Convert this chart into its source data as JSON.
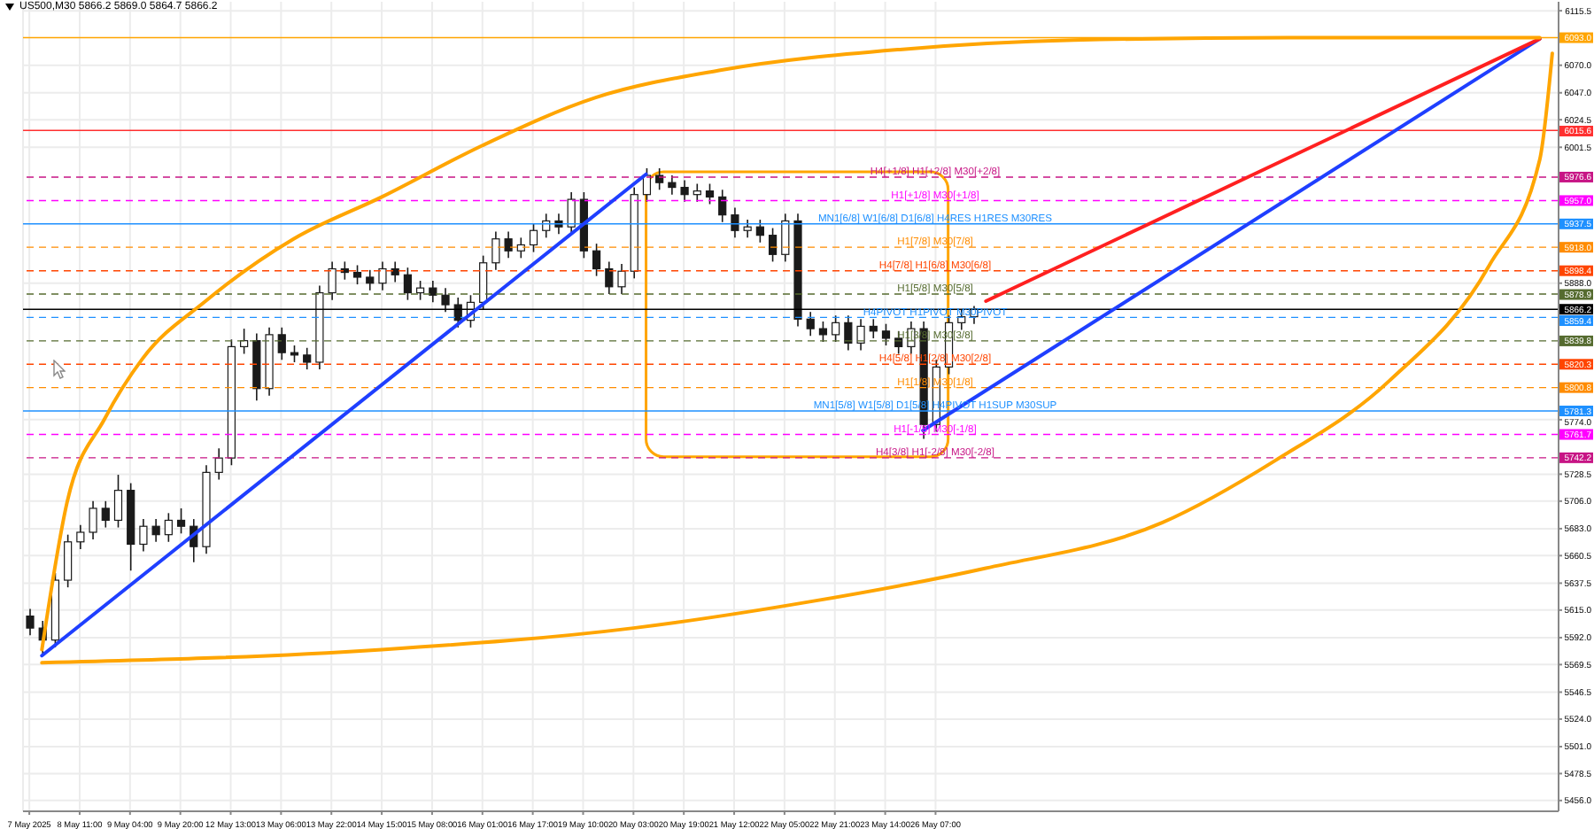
{
  "chart_data": {
    "type": "candlestick",
    "title": "US500,M30  5866.2 5869.0 5864.7 5866.2",
    "color": "#1a1a1a",
    "categories": [
      "7 May 2025",
      null,
      null,
      null,
      "8 May 11:00",
      null,
      null,
      null,
      "9 May 04:00",
      null,
      null,
      null,
      "9 May 20:00",
      null,
      null,
      null,
      "12 May 13:00",
      null,
      null,
      null,
      "13 May 06:00",
      null,
      null,
      null,
      "13 May 22:00",
      null,
      null,
      null,
      "14 May 15:00",
      null,
      null,
      null,
      "15 May 08:00",
      null,
      null,
      null,
      "16 May 01:00",
      null,
      null,
      null,
      "16 May 17:00",
      null,
      null,
      null,
      "19 May 10:00",
      null,
      null,
      null,
      "20 May 03:00",
      null,
      null,
      null,
      "20 May 19:00",
      null,
      null,
      null,
      "21 May 12:00",
      null,
      null,
      null,
      "22 May 05:00",
      null,
      null,
      null,
      "22 May 21:00",
      null,
      null,
      null,
      "23 May 14:00",
      null,
      null,
      null,
      "26 May 07:00",
      null,
      null,
      null,
      null,
      null,
      null,
      null,
      null,
      null,
      null,
      null,
      null,
      null,
      null,
      null,
      null,
      null,
      null,
      null,
      null,
      null,
      null,
      null,
      null,
      null,
      null,
      null,
      null,
      null,
      null,
      null,
      null,
      null,
      null,
      null,
      null,
      null,
      null,
      null,
      null,
      null,
      null,
      null,
      null,
      null,
      null,
      null,
      null,
      null
    ],
    "ohlc": [
      [
        5610,
        5616,
        5594,
        5600
      ],
      [
        5600,
        5606,
        5578,
        5590
      ],
      [
        5590,
        5646,
        5584,
        5640
      ],
      [
        5640,
        5678,
        5634,
        5672
      ],
      [
        5672,
        5686,
        5666,
        5680
      ],
      [
        5680,
        5706,
        5674,
        5700
      ],
      [
        5700,
        5706,
        5684,
        5690
      ],
      [
        5690,
        5728,
        5684,
        5715
      ],
      [
        5715,
        5721,
        5648,
        5670
      ],
      [
        5670,
        5691,
        5664,
        5685
      ],
      [
        5685,
        5691,
        5672,
        5678
      ],
      [
        5678,
        5696,
        5672,
        5690
      ],
      [
        5690,
        5700,
        5679,
        5685
      ],
      [
        5685,
        5691,
        5655,
        5668
      ],
      [
        5668,
        5736,
        5662,
        5730
      ],
      [
        5730,
        5750,
        5724,
        5742
      ],
      [
        5742,
        5841,
        5736,
        5835
      ],
      [
        5835,
        5850,
        5829,
        5840
      ],
      [
        5840,
        5846,
        5790,
        5800
      ],
      [
        5800,
        5851,
        5794,
        5845
      ],
      [
        5845,
        5851,
        5824,
        5830
      ],
      [
        5830,
        5836,
        5822,
        5828
      ],
      [
        5828,
        5834,
        5816,
        5822
      ],
      [
        5822,
        5886,
        5816,
        5880
      ],
      [
        5880,
        5906,
        5874,
        5900
      ],
      [
        5900,
        5906,
        5891,
        5897
      ],
      [
        5897,
        5903,
        5887,
        5893
      ],
      [
        5893,
        5899,
        5882,
        5888
      ],
      [
        5888,
        5906,
        5882,
        5900
      ],
      [
        5900,
        5906,
        5889,
        5895
      ],
      [
        5895,
        5901,
        5874,
        5880
      ],
      [
        5880,
        5890,
        5874,
        5884
      ],
      [
        5884,
        5890,
        5872,
        5878
      ],
      [
        5878,
        5884,
        5864,
        5870
      ],
      [
        5870,
        5876,
        5851,
        5857
      ],
      [
        5857,
        5878,
        5851,
        5872
      ],
      [
        5872,
        5911,
        5866,
        5905
      ],
      [
        5905,
        5931,
        5899,
        5925
      ],
      [
        5925,
        5931,
        5909,
        5915
      ],
      [
        5915,
        5926,
        5909,
        5920
      ],
      [
        5920,
        5938,
        5914,
        5932
      ],
      [
        5932,
        5946,
        5926,
        5940
      ],
      [
        5940,
        5946,
        5929,
        5935
      ],
      [
        5935,
        5964,
        5929,
        5958
      ],
      [
        5958,
        5964,
        5909,
        5915
      ],
      [
        5915,
        5921,
        5894,
        5900
      ],
      [
        5900,
        5906,
        5879,
        5885
      ],
      [
        5885,
        5904,
        5879,
        5898
      ],
      [
        5898,
        5968,
        5892,
        5962
      ],
      [
        5962,
        5984,
        5956,
        5978
      ],
      [
        5978,
        5984,
        5966,
        5972
      ],
      [
        5972,
        5978,
        5962,
        5968
      ],
      [
        5968,
        5974,
        5956,
        5962
      ],
      [
        5962,
        5971,
        5956,
        5965
      ],
      [
        5965,
        5971,
        5954,
        5960
      ],
      [
        5960,
        5966,
        5939,
        5945
      ],
      [
        5945,
        5951,
        5926,
        5932
      ],
      [
        5932,
        5941,
        5926,
        5935
      ],
      [
        5935,
        5941,
        5922,
        5928
      ],
      [
        5928,
        5934,
        5906,
        5912
      ],
      [
        5912,
        5946,
        5906,
        5940
      ],
      [
        5940,
        5946,
        5852,
        5858
      ],
      [
        5858,
        5864,
        5844,
        5850
      ],
      [
        5850,
        5856,
        5839,
        5845
      ],
      [
        5845,
        5861,
        5839,
        5855
      ],
      [
        5855,
        5861,
        5832,
        5838
      ],
      [
        5838,
        5858,
        5832,
        5852
      ],
      [
        5852,
        5858,
        5842,
        5848
      ],
      [
        5848,
        5854,
        5836,
        5842
      ],
      [
        5842,
        5848,
        5829,
        5835
      ],
      [
        5835,
        5856,
        5829,
        5850
      ],
      [
        5850,
        5856,
        5758,
        5770
      ],
      [
        5770,
        5824,
        5764,
        5818
      ],
      [
        5818,
        5861,
        5812,
        5855
      ],
      [
        5855,
        5866,
        5849,
        5860
      ],
      [
        5860,
        5869,
        5854,
        5866.2
      ],
      null,
      null,
      null,
      null,
      null,
      null,
      null,
      null,
      null,
      null,
      null,
      null,
      null,
      null,
      null,
      null,
      null,
      null,
      null,
      null,
      null,
      null,
      null,
      null,
      null,
      null,
      null,
      null,
      null,
      null,
      null,
      null,
      null,
      null,
      null,
      null,
      null,
      null,
      null,
      null,
      null,
      null,
      null,
      null,
      null,
      null
    ],
    "series": [
      {
        "type": "line",
        "color": "#1f3fff",
        "values": [
          null,
          5577,
          null,
          null,
          null,
          null,
          null,
          null,
          null,
          null,
          null,
          null,
          null,
          null,
          null,
          null,
          null,
          null,
          null,
          null,
          null,
          null,
          null,
          null,
          null,
          null,
          null,
          null,
          null,
          null,
          null,
          null,
          null,
          null,
          null,
          null,
          null,
          null,
          null,
          null,
          null,
          null,
          null,
          null,
          null,
          null,
          null,
          null,
          null,
          5979,
          null,
          null,
          null,
          null,
          null,
          null,
          null,
          null,
          null,
          null,
          null,
          null,
          null,
          null,
          null,
          null,
          null,
          null,
          null,
          null,
          null,
          null,
          null,
          null,
          null,
          null,
          null,
          null,
          null,
          null,
          null,
          null,
          null,
          null,
          null,
          null,
          null,
          null,
          null,
          null,
          null,
          null,
          null,
          null,
          null,
          null,
          null,
          null,
          null,
          null,
          null,
          null,
          null,
          null,
          null,
          null,
          null,
          null,
          null,
          null,
          null,
          null,
          null,
          null,
          null,
          null,
          null,
          null,
          null,
          null,
          null,
          null
        ]
      },
      {
        "type": "line",
        "color": "#1f3fff",
        "values": [
          null,
          null,
          null,
          null,
          null,
          null,
          null,
          null,
          null,
          null,
          null,
          null,
          null,
          null,
          null,
          null,
          null,
          null,
          null,
          null,
          null,
          null,
          null,
          null,
          null,
          null,
          null,
          null,
          null,
          null,
          null,
          null,
          null,
          null,
          null,
          null,
          null,
          null,
          null,
          null,
          null,
          null,
          null,
          null,
          null,
          null,
          null,
          null,
          null,
          null,
          null,
          null,
          null,
          null,
          null,
          null,
          null,
          null,
          null,
          null,
          null,
          null,
          null,
          null,
          null,
          null,
          null,
          null,
          null,
          null,
          null,
          5765,
          null,
          null,
          null,
          null,
          null,
          null,
          null,
          null,
          null,
          null,
          null,
          null,
          null,
          null,
          null,
          null,
          null,
          null,
          null,
          null,
          null,
          null,
          null,
          null,
          null,
          null,
          null,
          null,
          null,
          null,
          null,
          null,
          null,
          null,
          null,
          null,
          null,
          null,
          null,
          null,
          null,
          null,
          null,
          null,
          null,
          null,
          null,
          null,
          6092,
          null
        ]
      },
      {
        "type": "line",
        "color": "#ff2020",
        "values": [
          null,
          null,
          null,
          null,
          null,
          null,
          null,
          null,
          null,
          null,
          null,
          null,
          null,
          null,
          null,
          null,
          null,
          null,
          null,
          null,
          null,
          null,
          null,
          null,
          null,
          null,
          null,
          null,
          null,
          null,
          null,
          null,
          null,
          null,
          null,
          null,
          null,
          null,
          null,
          null,
          null,
          null,
          null,
          null,
          null,
          null,
          null,
          null,
          null,
          null,
          null,
          null,
          null,
          null,
          null,
          null,
          null,
          null,
          null,
          null,
          null,
          null,
          null,
          null,
          null,
          null,
          null,
          null,
          null,
          null,
          null,
          null,
          null,
          null,
          null,
          null,
          5873,
          null,
          null,
          null,
          null,
          null,
          null,
          null,
          null,
          null,
          null,
          null,
          null,
          null,
          null,
          null,
          null,
          null,
          null,
          null,
          null,
          null,
          null,
          null,
          null,
          null,
          null,
          null,
          null,
          null,
          null,
          null,
          null,
          null,
          null,
          null,
          null,
          null,
          null,
          null,
          null,
          null,
          null,
          null,
          6092,
          null
        ]
      },
      {
        "type": "line",
        "color": "#ffa500",
        "values": [
          null,
          5582,
          null,
          5705,
          null,
          null,
          5775,
          null,
          null,
          5825,
          null,
          null,
          null,
          null,
          5873,
          null,
          null,
          null,
          null,
          null,
          null,
          5925,
          null,
          null,
          null,
          null,
          null,
          null,
          5960,
          null,
          null,
          null,
          null,
          null,
          null,
          null,
          6003,
          null,
          null,
          null,
          null,
          null,
          null,
          null,
          null,
          6043,
          null,
          null,
          null,
          null,
          null,
          null,
          null,
          null,
          null,
          6066,
          null,
          null,
          null,
          null,
          null,
          null,
          null,
          null,
          null,
          null,
          null,
          null,
          null,
          6083,
          null,
          null,
          null,
          null,
          null,
          null,
          null,
          null,
          null,
          null,
          null,
          null,
          null,
          6091,
          null,
          null,
          null,
          null,
          null,
          null,
          null,
          null,
          null,
          null,
          null,
          null,
          null,
          null,
          null,
          null,
          6093,
          null,
          null,
          null,
          null,
          null,
          null,
          null,
          null,
          null,
          null,
          null,
          null,
          null,
          null,
          null,
          null,
          null,
          null,
          null,
          6093,
          null
        ]
      },
      {
        "type": "line",
        "color": "#ffa500",
        "values": [
          null,
          5571,
          null,
          null,
          null,
          null,
          null,
          null,
          null,
          null,
          null,
          null,
          null,
          null,
          null,
          null,
          null,
          null,
          null,
          null,
          null,
          null,
          null,
          null,
          null,
          null,
          null,
          null,
          5582,
          null,
          null,
          null,
          null,
          null,
          null,
          null,
          null,
          null,
          null,
          null,
          null,
          null,
          null,
          null,
          null,
          null,
          null,
          null,
          5600,
          null,
          null,
          null,
          null,
          null,
          null,
          null,
          null,
          null,
          null,
          null,
          null,
          null,
          5622,
          null,
          null,
          null,
          null,
          null,
          null,
          null,
          null,
          null,
          null,
          null,
          null,
          null,
          5650,
          null,
          null,
          null,
          null,
          null,
          null,
          null,
          null,
          null,
          null,
          null,
          null,
          null,
          5688,
          null,
          null,
          null,
          null,
          null,
          null,
          null,
          null,
          5740,
          null,
          null,
          null,
          null,
          null,
          null,
          null,
          null,
          5806,
          null,
          null,
          null,
          null,
          null,
          null,
          null,
          5903,
          null,
          null,
          null,
          5991,
          6080
        ]
      }
    ],
    "ylim": [
      5447,
      6123
    ],
    "yticks": [
      {
        "value": 6115.5,
        "label": "6115.5"
      },
      {
        "value": 6070,
        "label": "6070.0"
      },
      {
        "value": 6047,
        "label": "6047.0"
      },
      {
        "value": 6024.5,
        "label": "6024.5"
      },
      {
        "value": 6001.5,
        "label": "6001.5"
      },
      {
        "value": 5888,
        "label": "5888.0"
      },
      {
        "value": 5774,
        "label": "5774.0"
      },
      {
        "value": 5728.5,
        "label": "5728.5"
      },
      {
        "value": 5706,
        "label": "5706.0"
      },
      {
        "value": 5683,
        "label": "5683.0"
      },
      {
        "value": 5660.5,
        "label": "5660.5"
      },
      {
        "value": 5637.5,
        "label": "5637.5"
      },
      {
        "value": 5615,
        "label": "5615.0"
      },
      {
        "value": 5592,
        "label": "5592.0"
      },
      {
        "value": 5569.5,
        "label": "5569.5"
      },
      {
        "value": 5546.5,
        "label": "5546.5"
      },
      {
        "value": 5524,
        "label": "5524.0"
      },
      {
        "value": 5501,
        "label": "5501.0"
      },
      {
        "value": 5478.5,
        "label": "5478.5"
      },
      {
        "value": 5456,
        "label": "5456.0"
      }
    ],
    "grid": true,
    "ref_lines": [
      {
        "axis": "y",
        "value": 6093,
        "label": "6093.0",
        "color": "#ffa500",
        "line_style": "solid"
      },
      {
        "axis": "y",
        "value": 6015.6,
        "label": "6015.6",
        "color": "#ff3030",
        "line_style": "solid"
      },
      {
        "axis": "y",
        "value": 5976.6,
        "label": "5976.6",
        "color": "#c71585",
        "line_style": "dashed"
      },
      {
        "axis": "y",
        "value": 5957,
        "label": "5957.0",
        "color": "#ff00ff",
        "line_style": "dashed"
      },
      {
        "axis": "y",
        "value": 5937.5,
        "label": "5937.5",
        "color": "#1e90ff",
        "line_style": "solid"
      },
      {
        "axis": "y",
        "value": 5918,
        "label": "5918.0",
        "color": "#ff8c00",
        "line_style": "dashed"
      },
      {
        "axis": "y",
        "value": 5898.4,
        "label": "5898.4",
        "color": "#ff4500",
        "line_style": "dashed"
      },
      {
        "axis": "y",
        "value": 5878.9,
        "label": "5878.9",
        "color": "#556b2f",
        "line_style": "dashed"
      },
      {
        "axis": "y",
        "value": 5866.2,
        "label": "5866.2",
        "color": "#000000",
        "line_style": "solid"
      },
      {
        "axis": "y",
        "value": 5859.4,
        "label": "5859.4",
        "color": "#1e90ff",
        "line_style": "dashed"
      },
      {
        "axis": "y",
        "value": 5839.8,
        "label": "5839.8",
        "color": "#556b2f",
        "line_style": "dashed"
      },
      {
        "axis": "y",
        "value": 5820.3,
        "label": "5820.3",
        "color": "#ff4500",
        "line_style": "dashed"
      },
      {
        "axis": "y",
        "value": 5800.8,
        "label": "5800.8",
        "color": "#ff8c00",
        "line_style": "dashed"
      },
      {
        "axis": "y",
        "value": 5781.3,
        "label": "5781.3",
        "color": "#1e90ff",
        "line_style": "solid"
      },
      {
        "axis": "y",
        "value": 5761.7,
        "label": "5761.7",
        "color": "#ff00ff",
        "line_style": "dashed"
      },
      {
        "axis": "y",
        "value": 5742.2,
        "label": "5742.2",
        "color": "#c71585",
        "line_style": "dashed"
      }
    ],
    "annotations": [
      {
        "text": "H4[+1/8] H1[+2/8] M30[+2/8]",
        "y": 5976.6
      },
      {
        "text": "H1[+1/8] M30[+1/8]",
        "y": 5957
      },
      {
        "text": "MN1[6/8] W1[6/8] D1[6/8] H4RES H1RES M30RES",
        "y": 5937.5
      },
      {
        "text": "H1[7/8] M30[7/8]",
        "y": 5918
      },
      {
        "text": "H4[7/8] H1[6/8] M30[6/8]",
        "y": 5898.4
      },
      {
        "text": "H1[5/8] M30[5/8]",
        "y": 5878.9
      },
      {
        "text": "H4PIVOT H1PIVOT M30PIVOT",
        "y": 5859.4
      },
      {
        "text": "H1[3/8] M30[3/8]",
        "y": 5839.8
      },
      {
        "text": "H4[5/8] H1[2/8] M30[2/8]",
        "y": 5820.3
      },
      {
        "text": "H1[1/8] M30[1/8]",
        "y": 5800.8
      },
      {
        "text": "MN1[5/8] W1[5/8] D1[5/8] H4PIVOT H1SUP M30SUP",
        "y": 5781.3
      },
      {
        "text": "H1[-1/8] M30[-1/8]",
        "y": 5761.7
      },
      {
        "text": "H4[3/8] H1[-2/8] M30[-2/8]",
        "y": 5742.2
      }
    ]
  }
}
